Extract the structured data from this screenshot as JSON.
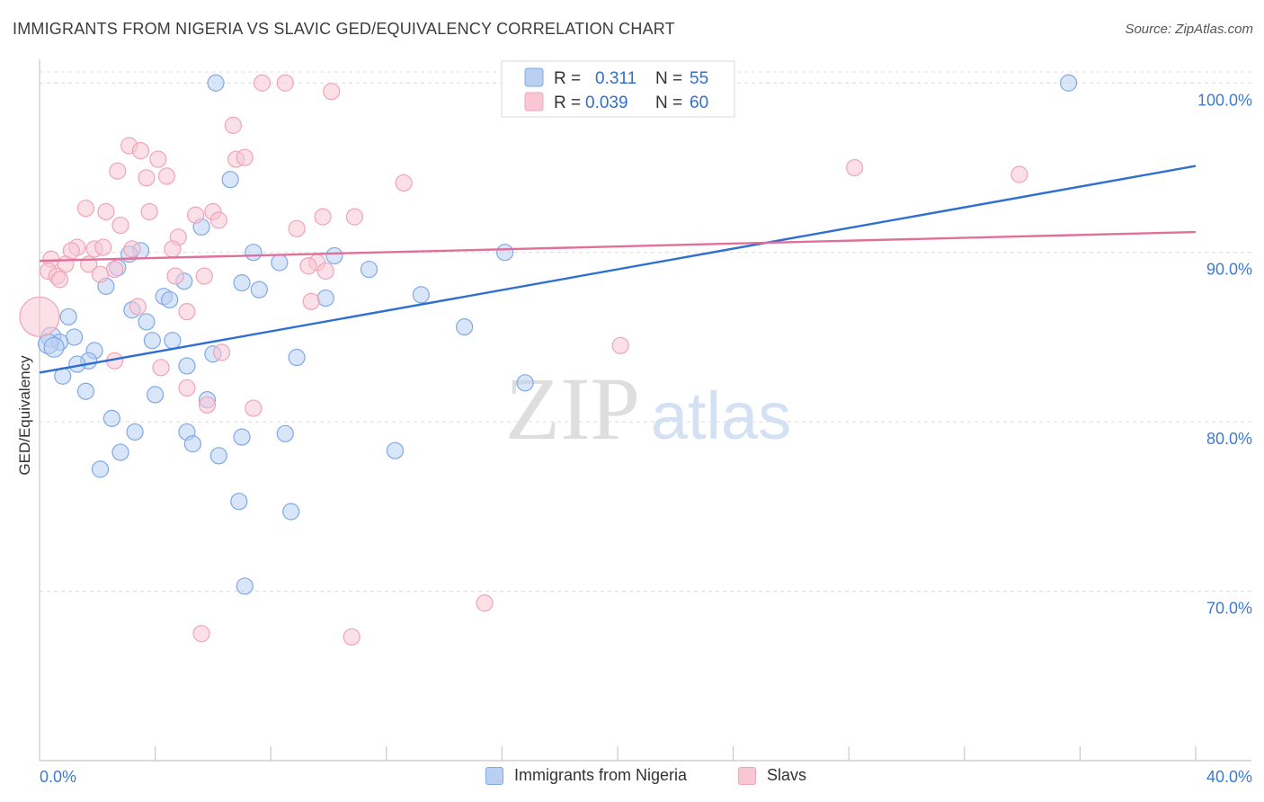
{
  "header": {
    "title": "IMMIGRANTS FROM NIGERIA VS SLAVIC GED/EQUIVALENCY CORRELATION CHART",
    "source": "Source: ZipAtlas.com"
  },
  "watermark": {
    "zip": "ZIP",
    "atlas": "atlas"
  },
  "chart_data": {
    "type": "scatter",
    "title": "IMMIGRANTS FROM NIGERIA VS SLAVIC GED/EQUIVALENCY CORRELATION CHART",
    "ylabel": "GED/Equivalency",
    "xlabel": "",
    "xlim": [
      0,
      40
    ],
    "ylim": [
      60,
      101.5
    ],
    "x_tick_labels": [
      "0.0%",
      "40.0%"
    ],
    "y_ticks": [
      {
        "value": 100,
        "label": "100.0%"
      },
      {
        "value": 90,
        "label": "90.0%"
      },
      {
        "value": 80,
        "label": "80.0%"
      },
      {
        "value": 70,
        "label": "70.0%"
      }
    ],
    "grid": "horizontal dashed",
    "legend_top": [
      {
        "r_label": "R =",
        "r_value": "0.311",
        "n_label": "N =",
        "n_value": "55"
      },
      {
        "r_label": "R =",
        "r_value": "0.039",
        "n_label": "N =",
        "n_value": "60"
      }
    ],
    "series": [
      {
        "name": "Immigrants from Nigeria",
        "color": "#7fa9e6",
        "fill": "#b9d0f2",
        "line_color": "#2f6fcf",
        "trend": {
          "x0": 0,
          "y0": 82.9,
          "x1": 40,
          "y1": 95.1
        },
        "points": [
          [
            6.1,
            100.0
          ],
          [
            35.6,
            100.0
          ],
          [
            6.6,
            94.3
          ],
          [
            5.6,
            91.5
          ],
          [
            3.5,
            90.1
          ],
          [
            3.1,
            89.9
          ],
          [
            7.4,
            90.0
          ],
          [
            8.3,
            89.4
          ],
          [
            10.2,
            89.8
          ],
          [
            11.4,
            89.0
          ],
          [
            16.1,
            90.0
          ],
          [
            2.7,
            89.1
          ],
          [
            2.3,
            88.0
          ],
          [
            7.0,
            88.2
          ],
          [
            7.6,
            87.8
          ],
          [
            5.0,
            88.3
          ],
          [
            4.3,
            87.4
          ],
          [
            4.5,
            87.2
          ],
          [
            9.9,
            87.3
          ],
          [
            13.2,
            87.5
          ],
          [
            1.0,
            86.2
          ],
          [
            3.2,
            86.6
          ],
          [
            3.7,
            85.9
          ],
          [
            14.7,
            85.6
          ],
          [
            0.4,
            85.0
          ],
          [
            1.2,
            85.0
          ],
          [
            0.7,
            84.7
          ],
          [
            0.3,
            84.6
          ],
          [
            0.5,
            84.4
          ],
          [
            3.9,
            84.8
          ],
          [
            4.6,
            84.8
          ],
          [
            1.9,
            84.2
          ],
          [
            1.7,
            83.6
          ],
          [
            1.3,
            83.4
          ],
          [
            6.0,
            84.0
          ],
          [
            8.9,
            83.8
          ],
          [
            5.1,
            83.3
          ],
          [
            0.8,
            82.7
          ],
          [
            16.8,
            82.3
          ],
          [
            1.6,
            81.8
          ],
          [
            4.0,
            81.6
          ],
          [
            5.8,
            81.3
          ],
          [
            2.5,
            80.2
          ],
          [
            3.3,
            79.4
          ],
          [
            5.1,
            79.4
          ],
          [
            7.0,
            79.1
          ],
          [
            8.5,
            79.3
          ],
          [
            5.3,
            78.7
          ],
          [
            2.8,
            78.2
          ],
          [
            6.2,
            78.0
          ],
          [
            12.3,
            78.3
          ],
          [
            2.1,
            77.2
          ],
          [
            6.9,
            75.3
          ],
          [
            8.7,
            74.7
          ],
          [
            7.1,
            70.3
          ]
        ]
      },
      {
        "name": "Slavs",
        "color": "#f0a3ba",
        "fill": "#f8c6d5",
        "line_color": "#e0709a",
        "trend": {
          "x0": 0,
          "y0": 89.5,
          "x1": 40,
          "y1": 91.2
        },
        "points": [
          [
            7.7,
            100.0
          ],
          [
            8.5,
            100.0
          ],
          [
            10.1,
            99.5
          ],
          [
            6.7,
            97.5
          ],
          [
            3.1,
            96.3
          ],
          [
            3.5,
            96.0
          ],
          [
            4.1,
            95.5
          ],
          [
            6.8,
            95.5
          ],
          [
            7.1,
            95.6
          ],
          [
            28.2,
            95.0
          ],
          [
            2.7,
            94.8
          ],
          [
            3.7,
            94.4
          ],
          [
            4.4,
            94.5
          ],
          [
            12.6,
            94.1
          ],
          [
            33.9,
            94.6
          ],
          [
            1.6,
            92.6
          ],
          [
            2.3,
            92.4
          ],
          [
            3.8,
            92.4
          ],
          [
            5.4,
            92.2
          ],
          [
            6.0,
            92.4
          ],
          [
            6.2,
            91.9
          ],
          [
            9.8,
            92.1
          ],
          [
            10.9,
            92.1
          ],
          [
            2.8,
            91.6
          ],
          [
            8.9,
            91.4
          ],
          [
            4.8,
            90.9
          ],
          [
            1.3,
            90.3
          ],
          [
            1.1,
            90.1
          ],
          [
            1.9,
            90.2
          ],
          [
            2.2,
            90.3
          ],
          [
            4.6,
            90.2
          ],
          [
            3.2,
            90.2
          ],
          [
            0.4,
            89.6
          ],
          [
            0.9,
            89.3
          ],
          [
            1.7,
            89.3
          ],
          [
            2.6,
            89.0
          ],
          [
            9.6,
            89.4
          ],
          [
            9.9,
            88.9
          ],
          [
            9.3,
            89.2
          ],
          [
            0.3,
            88.9
          ],
          [
            0.6,
            88.6
          ],
          [
            0.7,
            88.4
          ],
          [
            2.1,
            88.7
          ],
          [
            4.7,
            88.6
          ],
          [
            5.7,
            88.6
          ],
          [
            3.4,
            86.8
          ],
          [
            9.4,
            87.1
          ],
          [
            5.1,
            86.5
          ],
          [
            0.0,
            86.2
          ],
          [
            20.1,
            84.5
          ],
          [
            6.3,
            84.1
          ],
          [
            2.6,
            83.6
          ],
          [
            4.2,
            83.2
          ],
          [
            5.1,
            82.0
          ],
          [
            5.8,
            81.0
          ],
          [
            7.4,
            80.8
          ],
          [
            16.9,
            100.0
          ],
          [
            15.4,
            69.3
          ],
          [
            5.6,
            67.5
          ],
          [
            10.8,
            67.3
          ]
        ]
      }
    ]
  },
  "legend_bottom": {
    "items": [
      {
        "label": "Immigrants from Nigeria"
      },
      {
        "label": "Slavs"
      }
    ]
  }
}
